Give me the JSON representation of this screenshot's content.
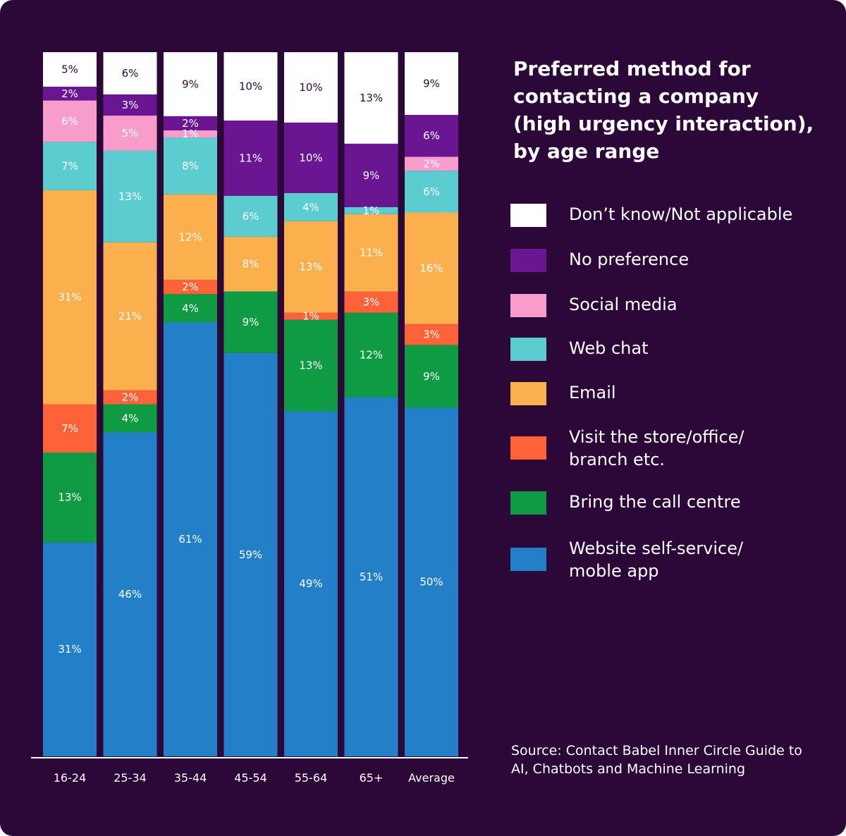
{
  "title": "Preferred method for contacting a company (high urgency interaction), by age range",
  "source": "Source: Contact Babel Inner Circle Guide to AI, Chatbots and Machine Learning",
  "colors": {
    "background": "#2b0838",
    "dont_know": "#ffffff",
    "no_preference": "#6a1592",
    "social_media": "#f89dcb",
    "web_chat": "#5bcdd0",
    "email": "#fbb04d",
    "visit_store": "#fd6238",
    "call_centre": "#0f9b44",
    "website": "#2380c8"
  },
  "legend": [
    {
      "label": "Don’t know/Not applicable",
      "color": "#ffffff"
    },
    {
      "label": "No preference",
      "color": "#6a1592"
    },
    {
      "label": "Social media",
      "color": "#f89dcb"
    },
    {
      "label": "Web chat",
      "color": "#5bcdd0"
    },
    {
      "label": "Email",
      "color": "#fbb04d"
    },
    {
      "label": "Visit the store/office/\nbranch etc.",
      "color": "#fd6238"
    },
    {
      "label": "Bring the call centre",
      "color": "#0f9b44"
    },
    {
      "label": "Website self-service/\nmoble app",
      "color": "#2380c8"
    }
  ],
  "chart_data": {
    "type": "bar",
    "stacked": true,
    "percent_stacked": true,
    "categories": [
      "16-24",
      "25-34",
      "35-44",
      "45-54",
      "55-64",
      "65+",
      "Average"
    ],
    "series": [
      {
        "name": "Website self-service/ moble app",
        "color": "#2380c8",
        "values": [
          31,
          46,
          61,
          59,
          49,
          51,
          50
        ]
      },
      {
        "name": "Bring the call centre",
        "color": "#0f9b44",
        "values": [
          13,
          4,
          4,
          9,
          13,
          12,
          9
        ]
      },
      {
        "name": "Visit the store/office/ branch etc.",
        "color": "#fd6238",
        "values": [
          7,
          2,
          2,
          null,
          1,
          3,
          3
        ]
      },
      {
        "name": "Email",
        "color": "#fbb04d",
        "values": [
          31,
          21,
          12,
          8,
          13,
          11,
          16
        ]
      },
      {
        "name": "Web chat",
        "color": "#5bcdd0",
        "values": [
          7,
          13,
          8,
          6,
          4,
          1,
          6
        ]
      },
      {
        "name": "Social media",
        "color": "#f89dcb",
        "values": [
          6,
          5,
          1,
          null,
          null,
          null,
          2
        ]
      },
      {
        "name": "No preference",
        "color": "#6a1592",
        "values": [
          2,
          3,
          2,
          11,
          10,
          9,
          6
        ]
      },
      {
        "name": "Don’t know/Not applicable",
        "color": "#ffffff",
        "values": [
          5,
          6,
          9,
          10,
          10,
          13,
          9
        ]
      }
    ],
    "data_labels": [
      [
        "31%",
        "13%",
        "7%",
        "31%",
        "7%",
        "6%",
        "2%",
        "5%"
      ],
      [
        "46%",
        "4%",
        "2%",
        "21%",
        "13%",
        "5%",
        "3%",
        "6%"
      ],
      [
        "61%",
        "4%",
        "2%",
        "12%",
        "8%",
        "1%",
        "2%",
        "9%"
      ],
      [
        "59%",
        "9%",
        "",
        "8%",
        "6%",
        "",
        "11%",
        "10%"
      ],
      [
        "49%",
        "13%",
        "1%",
        "13%",
        "4%",
        "",
        "10%",
        "10%"
      ],
      [
        "51%",
        "12%",
        "3%",
        "11%",
        "1%",
        "",
        "9%",
        "13%"
      ],
      [
        "50%",
        "9%",
        "3%",
        "16%",
        "6%",
        "2%",
        "6%",
        "9%"
      ]
    ],
    "ylim": [
      0,
      100
    ],
    "grid": false,
    "legend_position": "right"
  }
}
